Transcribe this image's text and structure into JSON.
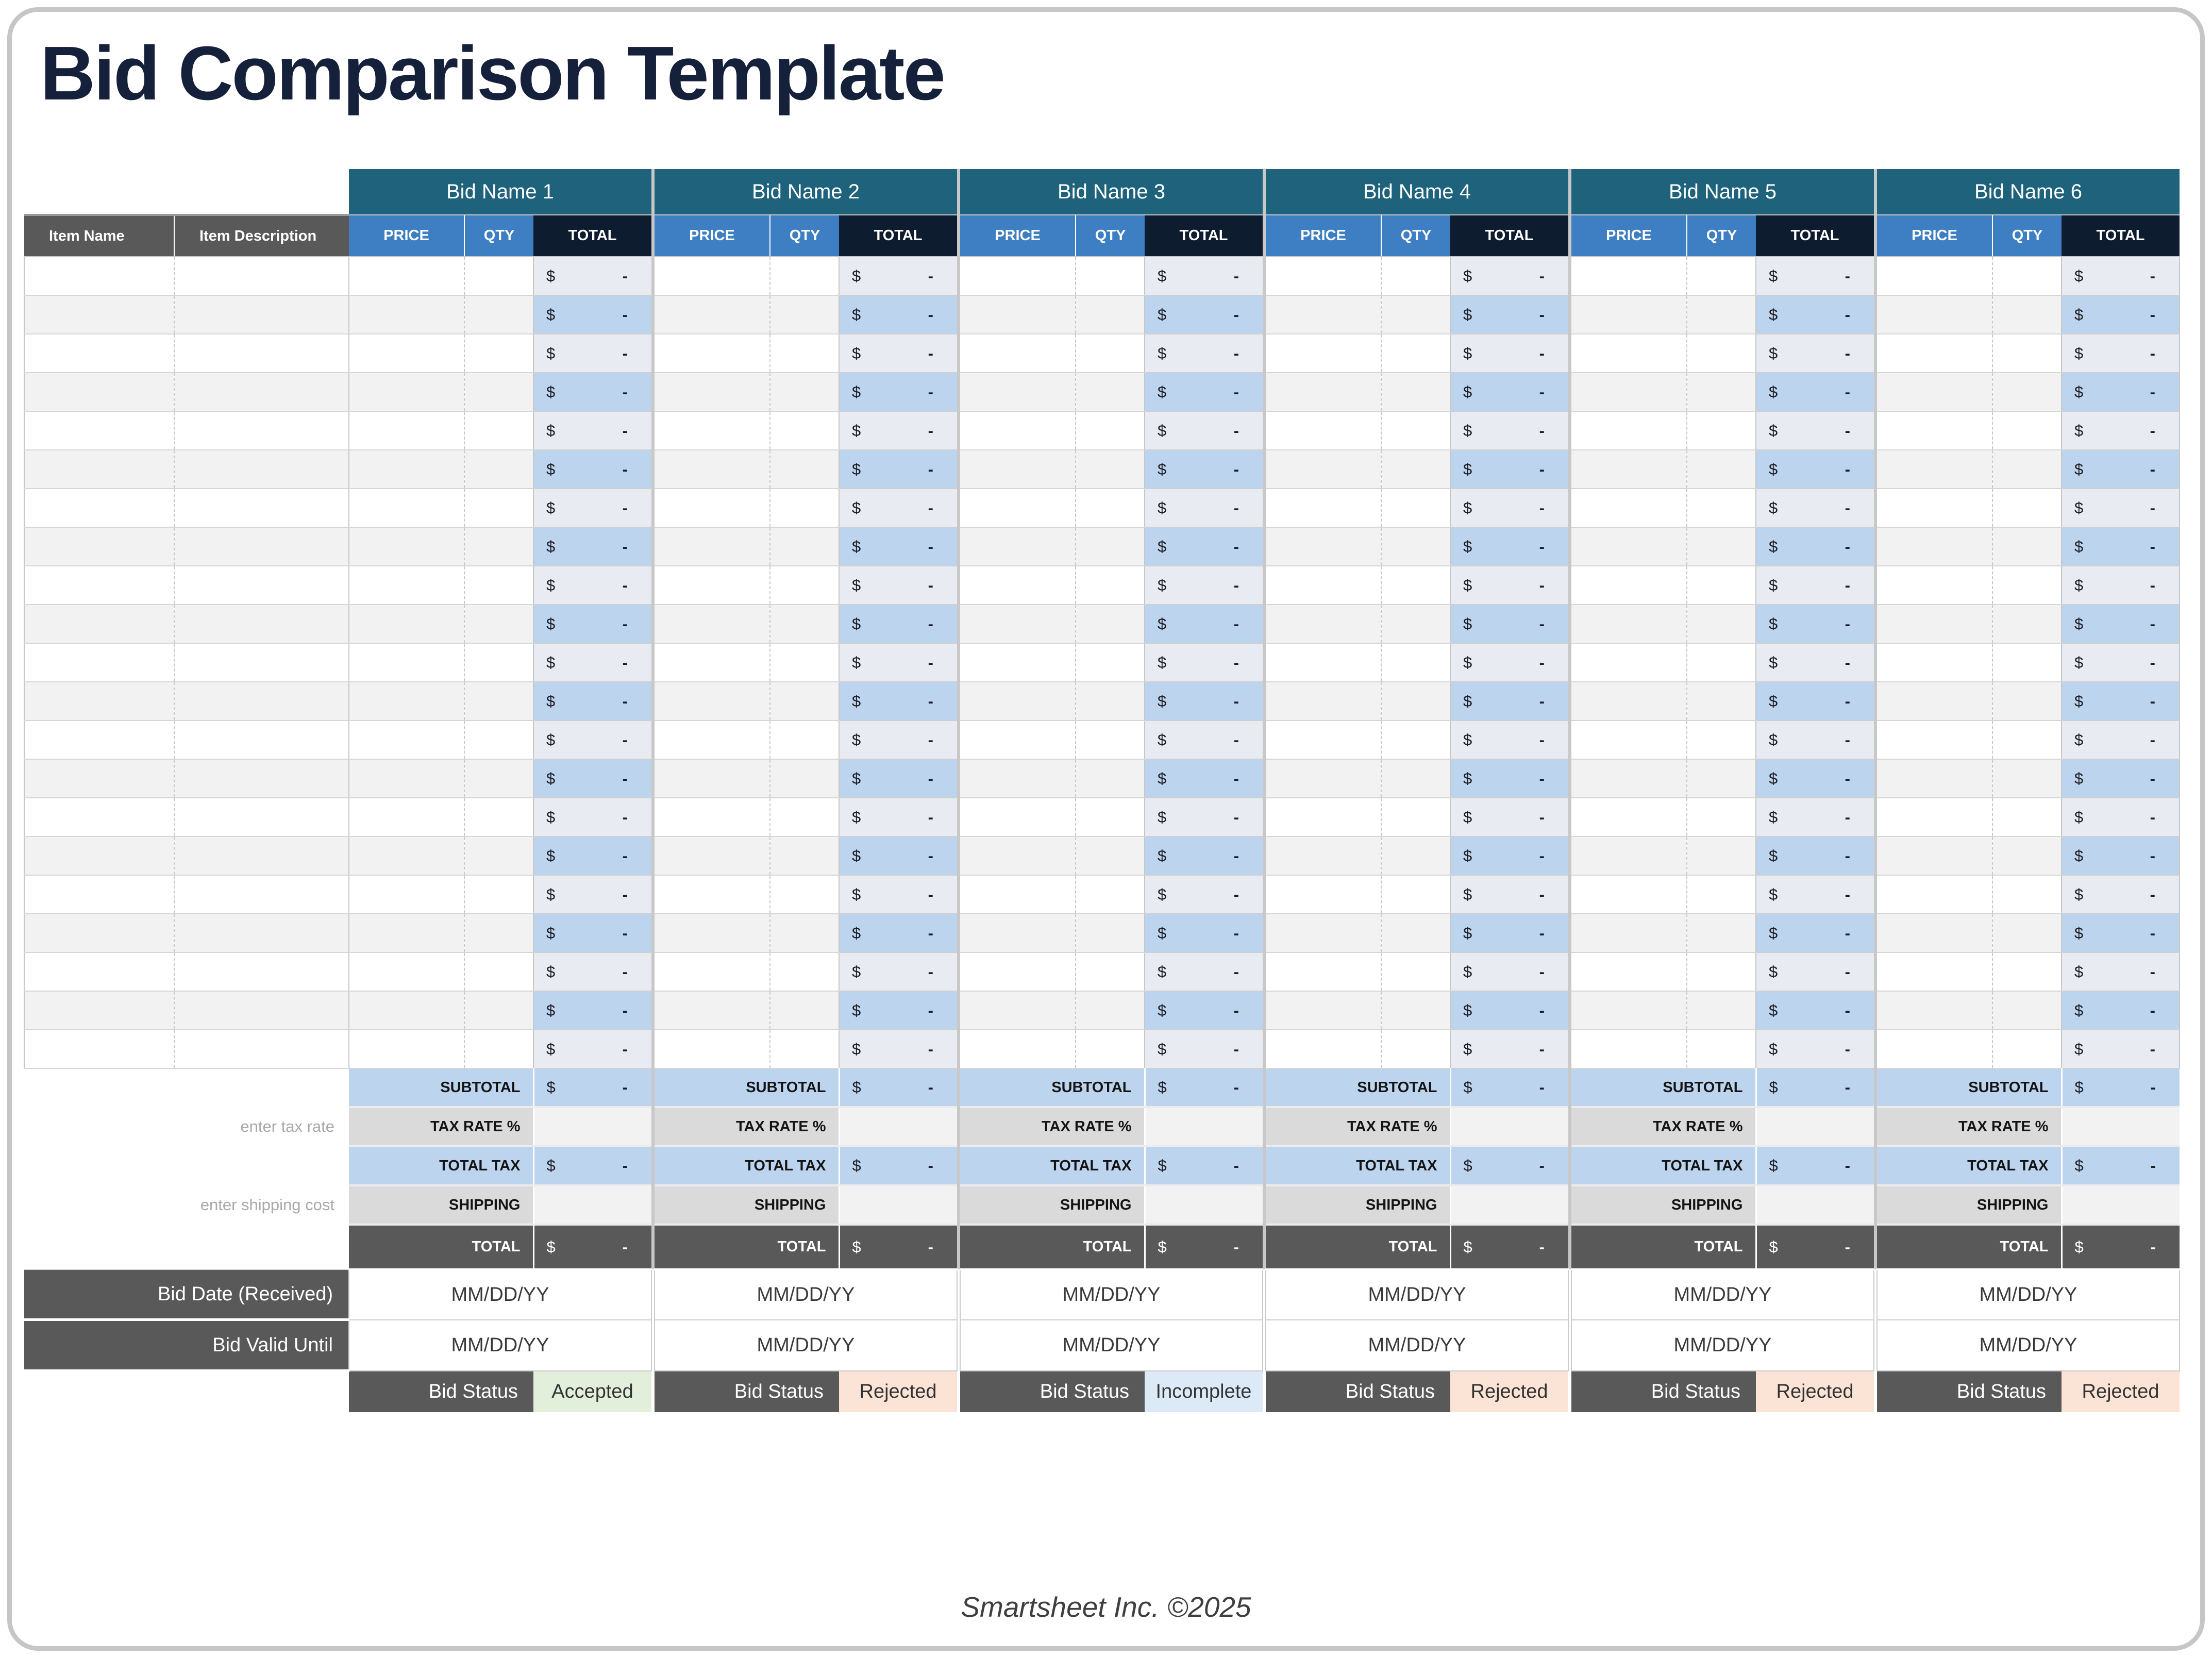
{
  "title": "Bid Comparison Template",
  "item_columns": {
    "name": "Item Name",
    "description": "Item Description"
  },
  "bid_columns": {
    "price": "PRICE",
    "qty": "QTY",
    "total": "TOTAL"
  },
  "bids": [
    {
      "name": "Bid Name 1",
      "status": "Accepted"
    },
    {
      "name": "Bid Name 2",
      "status": "Rejected"
    },
    {
      "name": "Bid Name 3",
      "status": "Incomplete"
    },
    {
      "name": "Bid Name 4",
      "status": "Rejected"
    },
    {
      "name": "Bid Name 5",
      "status": "Rejected"
    },
    {
      "name": "Bid Name 6",
      "status": "Rejected"
    }
  ],
  "item_row_count": 21,
  "currency": {
    "symbol": "$",
    "empty": "-"
  },
  "summary": {
    "subtotal": "SUBTOTAL",
    "tax_rate": "TAX RATE %",
    "total_tax": "TOTAL TAX",
    "shipping": "SHIPPING",
    "total": "TOTAL"
  },
  "side_notes": {
    "tax": "enter tax rate",
    "shipping": "enter shipping cost"
  },
  "meta_rows": {
    "bid_date": "Bid Date (Received)",
    "bid_valid": "Bid Valid Until",
    "bid_status": "Bid Status",
    "date_placeholder": "MM/DD/YY"
  },
  "status_colors": {
    "Accepted": "#e2efda",
    "Rejected": "#fbe3d6",
    "Incomplete": "#dce9f6"
  },
  "colors": {
    "band_teal": "#1e627c",
    "header_blue": "#3d7fc2",
    "header_navy": "#0e1c30",
    "dark_gray": "#595959",
    "total_light": "#e8ebf2",
    "total_blue": "#bdd4ee"
  },
  "footer": {
    "credit": "Smartsheet Inc. ©2025"
  }
}
